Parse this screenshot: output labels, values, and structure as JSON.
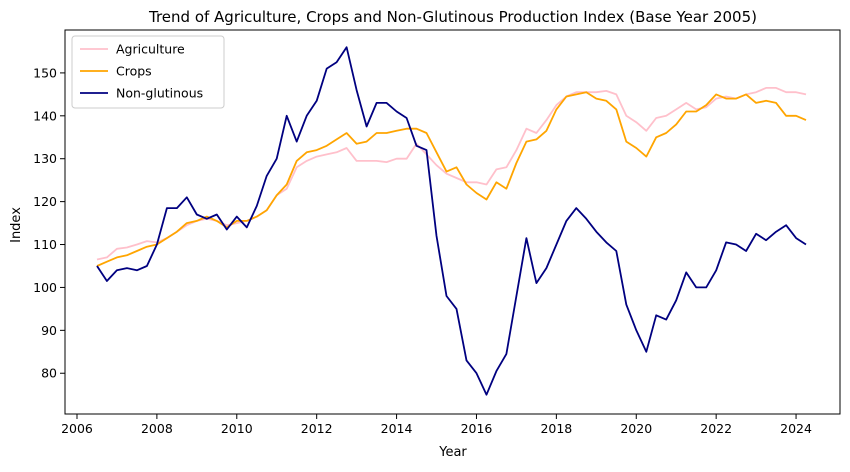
{
  "chart_data": {
    "type": "line",
    "title": "Trend of Agriculture, Crops and Non-Glutinous Production Index (Base Year 2005)",
    "xlabel": "Year",
    "ylabel": "Index",
    "xlim": [
      2005.7,
      2025.1
    ],
    "ylim": [
      70.5,
      160
    ],
    "x_ticks": [
      2006,
      2008,
      2010,
      2012,
      2014,
      2016,
      2018,
      2020,
      2022,
      2024
    ],
    "y_ticks": [
      80,
      90,
      100,
      110,
      120,
      130,
      140,
      150
    ],
    "grid": false,
    "legend": {
      "position": "top-left"
    },
    "series": [
      {
        "name": "Agriculture",
        "color": "#ffc0cb",
        "points": [
          [
            2006.5,
            106.5
          ],
          [
            2006.75,
            107
          ],
          [
            2007.0,
            109
          ],
          [
            2007.25,
            109.3
          ],
          [
            2007.5,
            110
          ],
          [
            2007.75,
            110.8
          ],
          [
            2008.0,
            110.5
          ],
          [
            2008.25,
            111.5
          ],
          [
            2008.5,
            113
          ],
          [
            2008.75,
            114.5
          ],
          [
            2009.0,
            115.5
          ],
          [
            2009.25,
            116
          ],
          [
            2009.5,
            115.5
          ],
          [
            2009.75,
            114.5
          ],
          [
            2010.0,
            115
          ],
          [
            2010.25,
            115.5
          ],
          [
            2010.5,
            116.5
          ],
          [
            2010.75,
            118
          ],
          [
            2011.0,
            121.5
          ],
          [
            2011.25,
            123
          ],
          [
            2011.5,
            128
          ],
          [
            2011.75,
            129.5
          ],
          [
            2012.0,
            130.5
          ],
          [
            2012.25,
            131
          ],
          [
            2012.5,
            131.5
          ],
          [
            2012.75,
            132.5
          ],
          [
            2013.0,
            129.5
          ],
          [
            2013.25,
            129.5
          ],
          [
            2013.5,
            129.5
          ],
          [
            2013.75,
            129.2
          ],
          [
            2014.0,
            130
          ],
          [
            2014.25,
            130
          ],
          [
            2014.5,
            133.5
          ],
          [
            2014.75,
            131
          ],
          [
            2015.0,
            128.5
          ],
          [
            2015.25,
            126.5
          ],
          [
            2015.5,
            125.5
          ],
          [
            2015.75,
            124.5
          ],
          [
            2016.0,
            124.5
          ],
          [
            2016.25,
            124
          ],
          [
            2016.5,
            127.5
          ],
          [
            2016.75,
            128
          ],
          [
            2017.0,
            132
          ],
          [
            2017.25,
            137
          ],
          [
            2017.5,
            136
          ],
          [
            2017.75,
            139
          ],
          [
            2018.0,
            142.5
          ],
          [
            2018.25,
            144.5
          ],
          [
            2018.5,
            145.5
          ],
          [
            2018.75,
            145.5
          ],
          [
            2019.0,
            145.5
          ],
          [
            2019.25,
            145.8
          ],
          [
            2019.5,
            145
          ],
          [
            2019.75,
            140
          ],
          [
            2020.0,
            138.5
          ],
          [
            2020.25,
            136.5
          ],
          [
            2020.5,
            139.5
          ],
          [
            2020.75,
            140
          ],
          [
            2021.0,
            141.5
          ],
          [
            2021.25,
            143
          ],
          [
            2021.5,
            141.5
          ],
          [
            2021.75,
            142
          ],
          [
            2022.0,
            144
          ],
          [
            2022.25,
            144.5
          ],
          [
            2022.5,
            144
          ],
          [
            2022.75,
            145
          ],
          [
            2023.0,
            145.5
          ],
          [
            2023.25,
            146.5
          ],
          [
            2023.5,
            146.5
          ],
          [
            2023.75,
            145.5
          ],
          [
            2024.0,
            145.5
          ],
          [
            2024.25,
            145
          ]
        ]
      },
      {
        "name": "Crops",
        "color": "#ffa500",
        "points": [
          [
            2006.5,
            105
          ],
          [
            2006.75,
            106
          ],
          [
            2007.0,
            107
          ],
          [
            2007.25,
            107.5
          ],
          [
            2007.5,
            108.5
          ],
          [
            2007.75,
            109.5
          ],
          [
            2008.0,
            110
          ],
          [
            2008.25,
            111.5
          ],
          [
            2008.5,
            113
          ],
          [
            2008.75,
            115
          ],
          [
            2009.0,
            115.5
          ],
          [
            2009.25,
            116.5
          ],
          [
            2009.5,
            115.5
          ],
          [
            2009.75,
            114
          ],
          [
            2010.0,
            115.5
          ],
          [
            2010.25,
            115.5
          ],
          [
            2010.5,
            116.5
          ],
          [
            2010.75,
            118
          ],
          [
            2011.0,
            121.5
          ],
          [
            2011.25,
            124
          ],
          [
            2011.5,
            129.5
          ],
          [
            2011.75,
            131.5
          ],
          [
            2012.0,
            132
          ],
          [
            2012.25,
            133
          ],
          [
            2012.5,
            134.5
          ],
          [
            2012.75,
            136
          ],
          [
            2013.0,
            133.5
          ],
          [
            2013.25,
            134
          ],
          [
            2013.5,
            136
          ],
          [
            2013.75,
            136
          ],
          [
            2014.0,
            136.5
          ],
          [
            2014.25,
            137
          ],
          [
            2014.5,
            137
          ],
          [
            2014.75,
            136
          ],
          [
            2015.0,
            131.5
          ],
          [
            2015.25,
            127
          ],
          [
            2015.5,
            128
          ],
          [
            2015.75,
            124
          ],
          [
            2016.0,
            122
          ],
          [
            2016.25,
            120.5
          ],
          [
            2016.5,
            124.5
          ],
          [
            2016.75,
            123
          ],
          [
            2017.0,
            129
          ],
          [
            2017.25,
            134
          ],
          [
            2017.5,
            134.5
          ],
          [
            2017.75,
            136.5
          ],
          [
            2018.0,
            141.5
          ],
          [
            2018.25,
            144.5
          ],
          [
            2018.5,
            145
          ],
          [
            2018.75,
            145.5
          ],
          [
            2019.0,
            144
          ],
          [
            2019.25,
            143.5
          ],
          [
            2019.5,
            141.5
          ],
          [
            2019.75,
            134
          ],
          [
            2020.0,
            132.5
          ],
          [
            2020.25,
            130.5
          ],
          [
            2020.5,
            135
          ],
          [
            2020.75,
            136
          ],
          [
            2021.0,
            138
          ],
          [
            2021.25,
            141
          ],
          [
            2021.5,
            141
          ],
          [
            2021.75,
            142.5
          ],
          [
            2022.0,
            145
          ],
          [
            2022.25,
            144
          ],
          [
            2022.5,
            144
          ],
          [
            2022.75,
            145
          ],
          [
            2023.0,
            143
          ],
          [
            2023.25,
            143.5
          ],
          [
            2023.5,
            143
          ],
          [
            2023.75,
            140
          ],
          [
            2024.0,
            140
          ],
          [
            2024.25,
            139
          ]
        ]
      },
      {
        "name": "Non-glutinous",
        "color": "#000080",
        "points": [
          [
            2006.5,
            105
          ],
          [
            2006.75,
            101.5
          ],
          [
            2007.0,
            104
          ],
          [
            2007.25,
            104.5
          ],
          [
            2007.5,
            104
          ],
          [
            2007.75,
            105
          ],
          [
            2008.0,
            110
          ],
          [
            2008.25,
            118.5
          ],
          [
            2008.5,
            118.5
          ],
          [
            2008.75,
            121
          ],
          [
            2009.0,
            117
          ],
          [
            2009.25,
            116
          ],
          [
            2009.5,
            117
          ],
          [
            2009.75,
            113.5
          ],
          [
            2010.0,
            116.5
          ],
          [
            2010.25,
            114
          ],
          [
            2010.5,
            119
          ],
          [
            2010.75,
            126
          ],
          [
            2011.0,
            130
          ],
          [
            2011.25,
            140
          ],
          [
            2011.5,
            134
          ],
          [
            2011.75,
            140
          ],
          [
            2012.0,
            143.5
          ],
          [
            2012.25,
            151
          ],
          [
            2012.5,
            152.5
          ],
          [
            2012.75,
            156
          ],
          [
            2013.0,
            146
          ],
          [
            2013.25,
            137.5
          ],
          [
            2013.5,
            143
          ],
          [
            2013.75,
            143
          ],
          [
            2014.0,
            141
          ],
          [
            2014.25,
            139.5
          ],
          [
            2014.5,
            133
          ],
          [
            2014.75,
            132
          ],
          [
            2015.0,
            112
          ],
          [
            2015.25,
            98
          ],
          [
            2015.5,
            95
          ],
          [
            2015.75,
            83
          ],
          [
            2016.0,
            80
          ],
          [
            2016.25,
            75
          ],
          [
            2016.5,
            80.5
          ],
          [
            2016.75,
            84.5
          ],
          [
            2017.0,
            98
          ],
          [
            2017.25,
            111.5
          ],
          [
            2017.5,
            101
          ],
          [
            2017.75,
            104.5
          ],
          [
            2018.0,
            110
          ],
          [
            2018.25,
            115.5
          ],
          [
            2018.5,
            118.5
          ],
          [
            2018.75,
            116
          ],
          [
            2019.0,
            113
          ],
          [
            2019.25,
            110.5
          ],
          [
            2019.5,
            108.5
          ],
          [
            2019.75,
            96
          ],
          [
            2020.0,
            90
          ],
          [
            2020.25,
            85
          ],
          [
            2020.5,
            93.5
          ],
          [
            2020.75,
            92.5
          ],
          [
            2021.0,
            97
          ],
          [
            2021.25,
            103.5
          ],
          [
            2021.5,
            100
          ],
          [
            2021.75,
            100
          ],
          [
            2022.0,
            104
          ],
          [
            2022.25,
            110.5
          ],
          [
            2022.5,
            110
          ],
          [
            2022.75,
            108.5
          ],
          [
            2023.0,
            112.5
          ],
          [
            2023.25,
            111
          ],
          [
            2023.5,
            113
          ],
          [
            2023.75,
            114.5
          ],
          [
            2024.0,
            111.5
          ],
          [
            2024.25,
            110
          ]
        ]
      }
    ]
  }
}
